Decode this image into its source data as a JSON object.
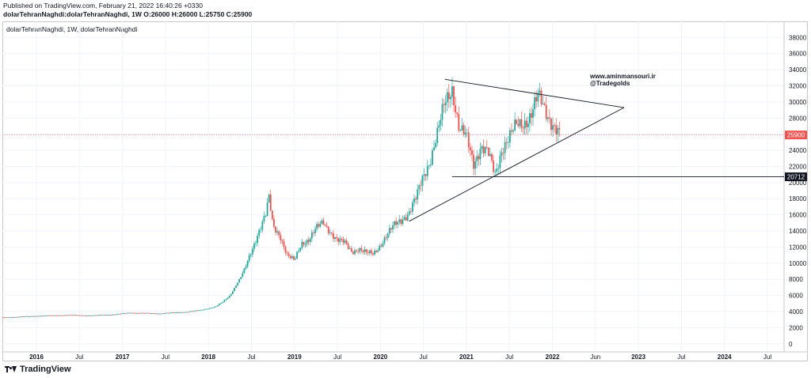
{
  "header": {
    "published": "Published on TradingView.com, February 21, 2022 16:40:26 +0330",
    "ohlc": "dolarTehranNaghdi:dolarTehranNaghdi, 1W  O:26000 H:26000 L:25750 C:25900"
  },
  "legend": "dolarTehranNaghdi, 1W, dolarTehranNaghdi",
  "footer": {
    "brand": "TradingView"
  },
  "colors": {
    "up": "#26a69a",
    "down": "#ef5350",
    "last_price_label": "#ef5350",
    "level_label": "#131722",
    "annotation": "#131722"
  },
  "chart_data": {
    "type": "candlestick",
    "symbol": "dolarTehranNaghdi",
    "interval": "1W",
    "x_tick_labels": [
      "2016",
      "Jul",
      "2017",
      "Jul",
      "2018",
      "Jul",
      "2019",
      "Jul",
      "2020",
      "Jul",
      "2021",
      "Jul",
      "2022",
      "Jun",
      "2023",
      "Jul",
      "2024",
      "Jul"
    ],
    "y_ticks": [
      0,
      2000,
      4000,
      6000,
      8000,
      10000,
      12000,
      14000,
      16000,
      18000,
      20000,
      22000,
      24000,
      26000,
      28000,
      30000,
      32000,
      34000,
      36000,
      38000
    ],
    "ylim": [
      -1000,
      39500
    ],
    "grid": true,
    "last_price": {
      "value": 25900,
      "label": "25900"
    },
    "horizontal_level": {
      "value": 20712,
      "label": "20712",
      "start": "2020-11"
    },
    "annotation": [
      "www.aminmansouri.ir",
      "@Tradegolds"
    ],
    "trendlines": [
      {
        "name": "upper",
        "from": [
          "2020-10",
          32800
        ],
        "to": [
          "2022-11",
          29300
        ]
      },
      {
        "name": "lower",
        "from": [
          "2020-05",
          15200
        ],
        "to": [
          "2022-11",
          29300
        ]
      }
    ],
    "price_path": [
      [
        "2015-07",
        3200
      ],
      [
        "2016-01",
        3450
      ],
      [
        "2016-05",
        3550
      ],
      [
        "2016-09",
        3500
      ],
      [
        "2016-12",
        3650
      ],
      [
        "2017-02",
        3850
      ],
      [
        "2017-06",
        3750
      ],
      [
        "2017-10",
        3950
      ],
      [
        "2017-12",
        4200
      ],
      [
        "2018-02",
        4600
      ],
      [
        "2018-03",
        5200
      ],
      [
        "2018-04",
        6000
      ],
      [
        "2018-05",
        7500
      ],
      [
        "2018-06",
        9000
      ],
      [
        "2018-07",
        11500
      ],
      [
        "2018-08",
        14000
      ],
      [
        "2018-09",
        16000
      ],
      [
        "2018-09-15",
        18000
      ],
      [
        "2018-10",
        14500
      ],
      [
        "2018-11",
        13500
      ],
      [
        "2018-12",
        11000
      ],
      [
        "2019-01",
        10200
      ],
      [
        "2019-02",
        12500
      ],
      [
        "2019-03",
        13000
      ],
      [
        "2019-04",
        14200
      ],
      [
        "2019-05",
        15000
      ],
      [
        "2019-06",
        14000
      ],
      [
        "2019-07",
        12800
      ],
      [
        "2019-08",
        12500
      ],
      [
        "2019-09",
        11500
      ],
      [
        "2019-10",
        11800
      ],
      [
        "2019-11",
        11200
      ],
      [
        "2019-12",
        11200
      ],
      [
        "2020-01",
        12300
      ],
      [
        "2020-02",
        13500
      ],
      [
        "2020-03",
        14800
      ],
      [
        "2020-04",
        15600
      ],
      [
        "2020-05",
        16200
      ],
      [
        "2020-06",
        18000
      ],
      [
        "2020-07",
        21000
      ],
      [
        "2020-08",
        23000
      ],
      [
        "2020-09",
        26000
      ],
      [
        "2020-10",
        30000
      ],
      [
        "2020-11",
        32000
      ],
      [
        "2020-12",
        26500
      ],
      [
        "2021-01",
        25500
      ],
      [
        "2021-02",
        22500
      ],
      [
        "2021-03",
        24500
      ],
      [
        "2021-04",
        23500
      ],
      [
        "2021-05",
        21000
      ],
      [
        "2021-06",
        24500
      ],
      [
        "2021-07",
        25500
      ],
      [
        "2021-08",
        27000
      ],
      [
        "2021-09",
        27500
      ],
      [
        "2021-10",
        28500
      ],
      [
        "2021-11",
        30500
      ],
      [
        "2021-12",
        29000
      ],
      [
        "2022-01",
        27500
      ],
      [
        "2022-02",
        25900
      ]
    ]
  }
}
